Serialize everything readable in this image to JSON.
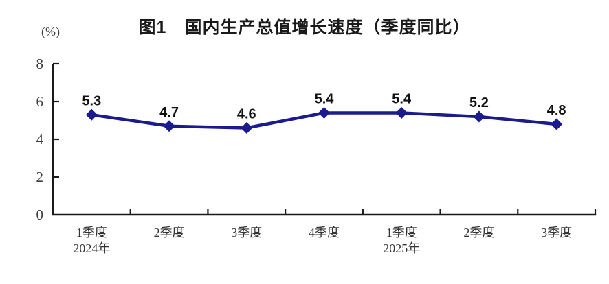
{
  "chart_data": {
    "type": "line",
    "title": "图1　国内生产总值增长速度（季度同比）",
    "ylabel_unit": "(%)",
    "categories": [
      "1季度",
      "2季度",
      "3季度",
      "4季度",
      "1季度",
      "2季度",
      "3季度"
    ],
    "category_sublabels": [
      "2024年",
      "",
      "",
      "",
      "2025年",
      "",
      ""
    ],
    "values": [
      5.3,
      4.7,
      4.6,
      5.4,
      5.4,
      5.2,
      4.8
    ],
    "data_labels": [
      "5.3",
      "4.7",
      "4.6",
      "5.4",
      "5.4",
      "5.2",
      "4.8"
    ],
    "ylim": [
      0,
      8
    ],
    "yticks": [
      0,
      2,
      4,
      6,
      8
    ],
    "grid": false,
    "legend": "none",
    "marker": "diamond",
    "line_color": "#1b1b8e",
    "axis_color": "#1a1a1a",
    "value_label_color": "#111111",
    "tick_label_color": "#3d3d3d"
  }
}
